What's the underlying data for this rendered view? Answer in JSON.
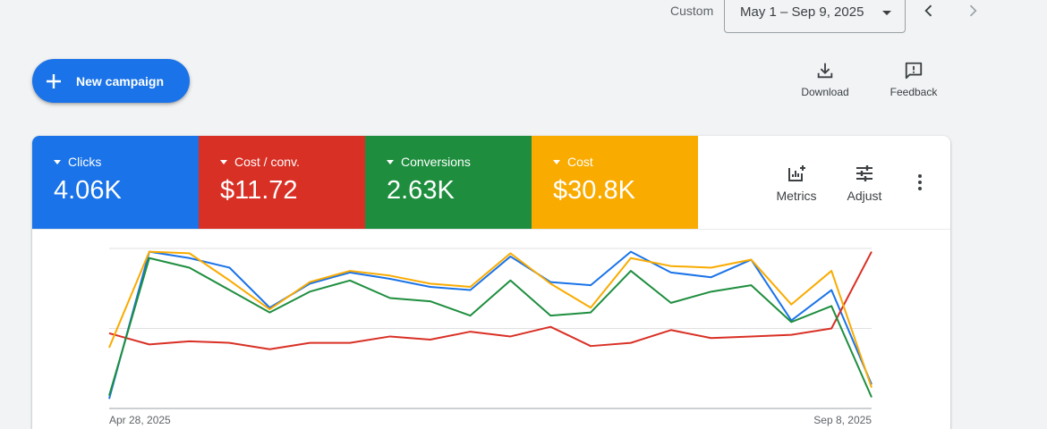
{
  "date_range": {
    "label": "Custom",
    "value": "May 1 – Sep 9, 2025",
    "prev_icon": "chevron-left-icon",
    "next_icon": "chevron-right-icon"
  },
  "toolbar": {
    "new_campaign_label": "New campaign",
    "download_label": "Download",
    "feedback_label": "Feedback"
  },
  "metrics": [
    {
      "name": "Clicks",
      "value": "4.06K",
      "color": "#1a73e8"
    },
    {
      "name": "Cost / conv.",
      "value": "$11.72",
      "color": "#d93025"
    },
    {
      "name": "Conversions",
      "value": "2.63K",
      "color": "#1e8e3e"
    },
    {
      "name": "Cost",
      "value": "$30.8K",
      "color": "#f9ab00"
    }
  ],
  "card_tools": {
    "metrics_label": "Metrics",
    "adjust_label": "Adjust",
    "more_icon": "more-vert-icon"
  },
  "chart_data": {
    "type": "line",
    "x_start_label": "Apr 28, 2025",
    "x_end_label": "Sep 8, 2025",
    "points": 20,
    "ylim": [
      0,
      100
    ],
    "grid": true,
    "series": [
      {
        "color": "#1a73e8",
        "values": [
          6,
          98,
          94,
          88,
          63,
          78,
          85,
          81,
          76,
          74,
          95,
          79,
          77,
          98,
          85,
          82,
          93,
          55,
          74,
          15
        ]
      },
      {
        "color": "#d93025",
        "values": [
          47,
          40,
          42,
          41,
          37,
          41,
          41,
          45,
          43,
          48,
          45,
          51,
          39,
          41,
          49,
          44,
          45,
          46,
          50,
          98
        ]
      },
      {
        "color": "#1e8e3e",
        "values": [
          8,
          94,
          88,
          74,
          60,
          73,
          80,
          69,
          67,
          58,
          80,
          58,
          60,
          86,
          66,
          73,
          77,
          54,
          64,
          7
        ]
      },
      {
        "color": "#f9ab00",
        "values": [
          38,
          98,
          97,
          80,
          62,
          79,
          86,
          83,
          78,
          76,
          97,
          78,
          63,
          94,
          89,
          88,
          93,
          65,
          86,
          13
        ]
      }
    ]
  }
}
